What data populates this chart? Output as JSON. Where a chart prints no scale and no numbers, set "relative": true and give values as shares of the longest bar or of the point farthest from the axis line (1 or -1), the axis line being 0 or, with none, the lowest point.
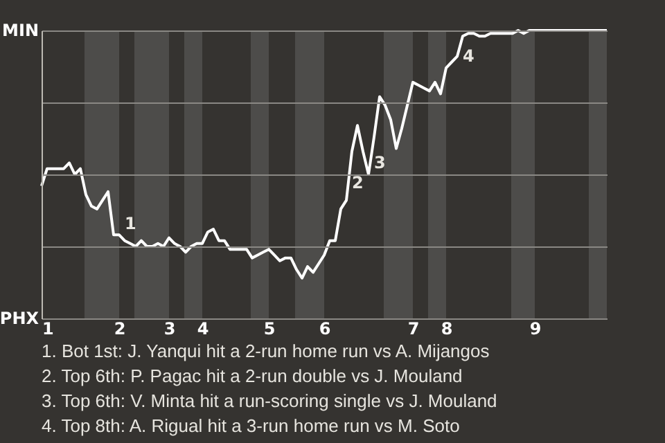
{
  "chart_data": {
    "type": "line",
    "relative": true,
    "categories": [
      "1",
      null,
      null,
      null,
      null,
      null,
      null,
      null,
      null,
      null,
      null,
      null,
      null,
      null,
      "2",
      null,
      null,
      null,
      null,
      null,
      null,
      null,
      null,
      "3",
      null,
      null,
      null,
      null,
      null,
      "4",
      null,
      null,
      null,
      null,
      null,
      null,
      null,
      null,
      null,
      null,
      null,
      "5",
      null,
      null,
      null,
      null,
      null,
      null,
      null,
      null,
      null,
      "6",
      null,
      null,
      null,
      null,
      null,
      null,
      null,
      null,
      null,
      null,
      null,
      null,
      null,
      null,
      null,
      "7",
      null,
      null,
      null,
      null,
      null,
      "8",
      null,
      null,
      null,
      null,
      null,
      null,
      null,
      null,
      null,
      null,
      null,
      null,
      null,
      null,
      null,
      "9",
      null,
      null,
      null,
      null,
      null,
      null,
      null,
      null,
      null,
      null,
      null,
      null,
      null
    ],
    "series": [
      {
        "color": "#ffffff",
        "values": [
          0.46,
          0.52,
          0.52,
          0.52,
          0.52,
          0.54,
          0.5,
          0.52,
          0.43,
          0.39,
          0.38,
          0.41,
          0.44,
          0.29,
          0.29,
          0.27,
          0.26,
          0.25,
          0.27,
          0.25,
          0.25,
          0.26,
          0.25,
          0.28,
          0.26,
          0.25,
          0.23,
          0.25,
          0.26,
          0.26,
          0.3,
          0.31,
          0.27,
          0.27,
          0.24,
          0.24,
          0.24,
          0.24,
          0.21,
          0.22,
          0.23,
          0.24,
          0.22,
          0.2,
          0.21,
          0.21,
          0.17,
          0.14,
          0.18,
          0.16,
          0.19,
          0.22,
          0.27,
          0.27,
          0.38,
          0.41,
          0.58,
          0.67,
          0.58,
          0.5,
          0.63,
          0.77,
          0.74,
          0.69,
          0.59,
          0.66,
          0.74,
          0.82,
          0.81,
          0.8,
          0.79,
          0.82,
          0.78,
          0.87,
          0.89,
          0.91,
          0.98,
          0.99,
          0.99,
          0.98,
          0.98,
          0.99,
          0.99,
          0.99,
          0.99,
          0.99,
          1,
          0.99,
          1,
          1,
          1,
          1,
          1,
          1,
          1,
          1,
          1,
          1,
          1,
          1,
          1,
          1,
          1
        ]
      }
    ],
    "grid": "y",
    "annotations": [
      "MIN",
      "PHX",
      "1",
      "2",
      "3",
      "4",
      "1. Bot 1st: J. Yanqui hit a 2-run home run vs A. Mijangos",
      "2. Top 6th: P. Pagac hit a 2-run double vs J. Mouland",
      "3. Top 6th: V. Minta hit a run-scoring single vs J. Mouland",
      "4. Top 8th: A. Rigual hit a 3-run home run vs M. Soto"
    ]
  }
}
